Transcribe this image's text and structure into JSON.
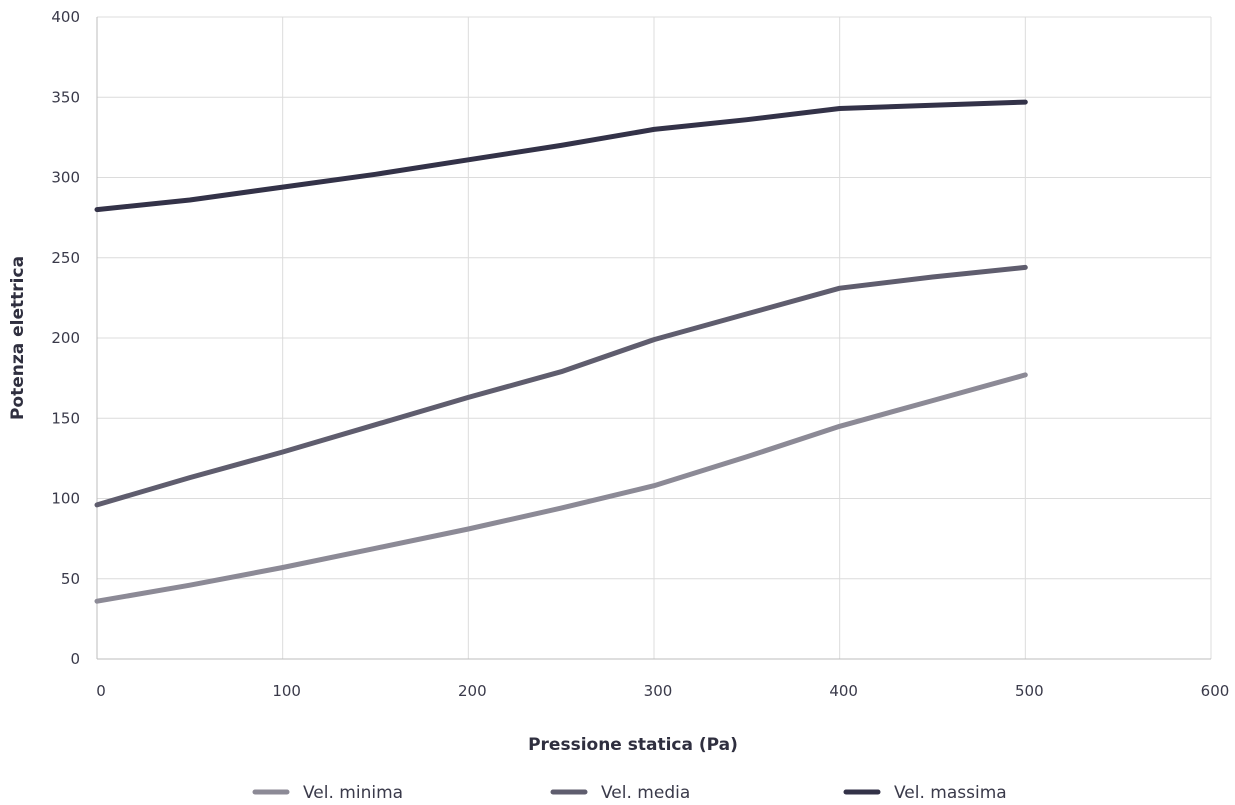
{
  "chart_data": {
    "type": "line",
    "xlabel": "Pressione statica (Pa)",
    "ylabel": "Potenza elettrica",
    "xlim": [
      0,
      600
    ],
    "ylim": [
      0,
      400
    ],
    "xticks": [
      0,
      100,
      200,
      300,
      400,
      500,
      600
    ],
    "yticks": [
      0,
      50,
      100,
      150,
      200,
      250,
      300,
      350,
      400
    ],
    "grid": true,
    "legend_position": "bottom",
    "series": [
      {
        "name": "Vel. minima",
        "color": "#8c8a96",
        "x": [
          0,
          50,
          100,
          150,
          200,
          250,
          300,
          350,
          400,
          450,
          500
        ],
        "y": [
          36,
          46,
          57,
          69,
          81,
          94,
          108,
          126,
          145,
          161,
          177
        ]
      },
      {
        "name": "Vel. media",
        "color": "#5f5d6e",
        "x": [
          0,
          50,
          100,
          150,
          200,
          250,
          300,
          350,
          400,
          450,
          500
        ],
        "y": [
          96,
          113,
          129,
          146,
          163,
          179,
          199,
          215,
          231,
          238,
          244
        ]
      },
      {
        "name": "Vel. massima",
        "color": "#333248",
        "x": [
          0,
          50,
          100,
          150,
          200,
          250,
          300,
          350,
          400,
          450,
          500
        ],
        "y": [
          280,
          286,
          294,
          302,
          311,
          320,
          330,
          336,
          343,
          345,
          347
        ]
      }
    ]
  }
}
